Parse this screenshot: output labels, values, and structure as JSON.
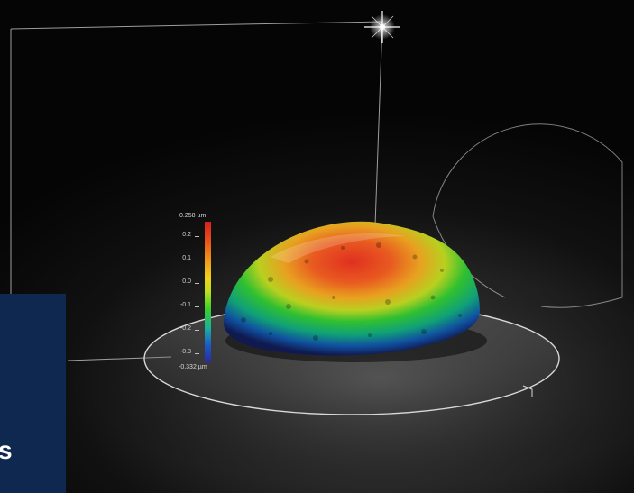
{
  "colorbar": {
    "max_label": "0.258 µm",
    "min_label": "-0.332 µm",
    "ticks": [
      "0.2",
      "0.1",
      "0.0",
      "-0.1",
      "-0.2",
      "-0.3"
    ],
    "colors": {
      "high": "#d62020",
      "mid": "#f2d21a",
      "low": "#2a2aa0"
    }
  },
  "panel": {
    "glyph": "s",
    "color": "#0f2850"
  }
}
